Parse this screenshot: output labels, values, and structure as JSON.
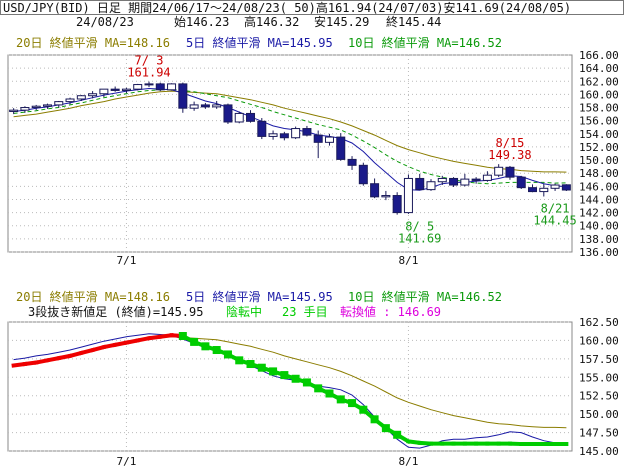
{
  "header": {
    "line1": "USD/JPY(BID) 日足 期間24/06/17～24/08/23( 50)高161.94(24/07/03)安141.69(24/08/05)",
    "date": "24/08/23",
    "open_label": "始146.23",
    "high_label": "高146.32",
    "low_label": "安145.29",
    "close_label": "終145.44"
  },
  "top_legend": {
    "ma20": "20日 終値平滑 MA=148.16",
    "ma5": "5日 終値平滑 MA=145.95",
    "ma10": "10日 終値平滑 MA=146.52"
  },
  "bottom_legend": {
    "ma20": "20日 終値平滑 MA=148.16",
    "ma5": "5日 終値平滑 MA=145.95",
    "ma10": "10日 終値平滑 MA=146.52",
    "three_line_break": "3段抜き新値足 (終値)=145.95",
    "status": "陰転中",
    "count": "23 手目",
    "reversal": "転換値 : 146.69"
  },
  "colors": {
    "ma20": "#8b7d00",
    "ma5": "#1a1aa6",
    "ma10": "#0a9a0a",
    "candle_down": "#1a1a8a",
    "up_label": "#cc0000",
    "down_label": "#1a9a1a",
    "brick_up": "#ee0000",
    "brick_down": "#00cc00",
    "reversal": "#dd00dd"
  },
  "chart_data": [
    {
      "type": "candlestick",
      "title": "USD/JPY(BID) 日足",
      "x_tick_labels": [
        "7/1",
        "8/1"
      ],
      "ylim": [
        136,
        166
      ],
      "y_tick_labels": [
        "166.00",
        "164.00",
        "162.00",
        "160.00",
        "158.00",
        "156.00",
        "154.00",
        "152.00",
        "150.00",
        "148.00",
        "146.00",
        "144.00",
        "142.00",
        "140.00",
        "138.00",
        "136.00"
      ],
      "annotations": [
        {
          "label_date": "7/ 3",
          "label_value": "161.94",
          "date_index": 12,
          "value": 161.94,
          "kind": "high"
        },
        {
          "label_date": "8/ 5",
          "label_value": "141.69",
          "date_index": 36,
          "value": 141.69,
          "kind": "low"
        },
        {
          "label_date": "8/15",
          "label_value": "149.38",
          "date_index": 44,
          "value": 149.38,
          "kind": "high"
        },
        {
          "label_date": "8/21",
          "label_value": "144.45",
          "date_index": 48,
          "value": 144.45,
          "kind": "low"
        }
      ],
      "ohlc": [
        [
          157.4,
          157.9,
          157.0,
          157.6
        ],
        [
          157.6,
          158.2,
          157.2,
          158.0
        ],
        [
          158.0,
          158.4,
          157.6,
          158.2
        ],
        [
          158.2,
          158.6,
          157.8,
          158.4
        ],
        [
          158.4,
          159.0,
          158.0,
          158.9
        ],
        [
          158.9,
          159.5,
          158.5,
          159.3
        ],
        [
          159.3,
          159.9,
          159.0,
          159.8
        ],
        [
          159.8,
          160.5,
          159.4,
          160.1
        ],
        [
          160.1,
          160.8,
          159.6,
          160.8
        ],
        [
          160.8,
          161.2,
          160.4,
          160.6
        ],
        [
          160.6,
          161.0,
          160.2,
          160.8
        ],
        [
          160.8,
          161.6,
          160.6,
          161.5
        ],
        [
          161.5,
          161.94,
          161.1,
          161.6
        ],
        [
          161.6,
          161.8,
          160.5,
          160.7
        ],
        [
          160.7,
          161.7,
          160.6,
          161.6
        ],
        [
          161.6,
          161.8,
          157.2,
          157.9
        ],
        [
          157.9,
          158.9,
          157.5,
          158.4
        ],
        [
          158.4,
          158.7,
          157.8,
          158.1
        ],
        [
          158.1,
          159.0,
          157.8,
          158.4
        ],
        [
          158.4,
          158.6,
          155.5,
          155.8
        ],
        [
          155.8,
          157.4,
          155.6,
          157.1
        ],
        [
          157.1,
          157.6,
          155.7,
          155.9
        ],
        [
          155.9,
          156.4,
          153.2,
          153.6
        ],
        [
          153.6,
          154.5,
          153.1,
          154.0
        ],
        [
          154.0,
          154.3,
          153.0,
          153.4
        ],
        [
          153.4,
          155.1,
          153.2,
          154.8
        ],
        [
          154.8,
          155.2,
          153.6,
          153.8
        ],
        [
          153.8,
          154.5,
          150.3,
          152.7
        ],
        [
          152.7,
          154.0,
          152.2,
          153.5
        ],
        [
          153.5,
          154.1,
          149.9,
          150.1
        ],
        [
          150.1,
          150.6,
          148.5,
          149.2
        ],
        [
          149.2,
          149.6,
          146.1,
          146.4
        ],
        [
          146.4,
          147.2,
          144.2,
          144.4
        ],
        [
          144.4,
          145.3,
          143.9,
          144.6
        ],
        [
          144.6,
          145.1,
          141.69,
          142.0
        ],
        [
          142.0,
          147.8,
          141.8,
          147.2
        ],
        [
          147.2,
          147.9,
          145.4,
          145.5
        ],
        [
          145.5,
          147.1,
          145.3,
          146.7
        ],
        [
          146.7,
          147.6,
          146.2,
          147.2
        ],
        [
          147.2,
          147.4,
          145.9,
          146.2
        ],
        [
          146.2,
          147.9,
          146.0,
          147.1
        ],
        [
          147.1,
          147.4,
          146.4,
          146.9
        ],
        [
          146.9,
          148.3,
          146.7,
          147.7
        ],
        [
          147.7,
          149.38,
          147.4,
          148.9
        ],
        [
          148.9,
          149.1,
          147.0,
          147.4
        ],
        [
          147.4,
          147.6,
          145.6,
          145.8
        ],
        [
          145.8,
          146.3,
          145.1,
          145.2
        ],
        [
          145.2,
          146.4,
          144.45,
          145.7
        ],
        [
          145.7,
          146.4,
          145.3,
          146.2
        ],
        [
          146.23,
          146.32,
          145.29,
          145.44
        ]
      ],
      "series": [
        {
          "name": "20日 終値平滑",
          "values": [
            156.6,
            156.8,
            157.0,
            157.3,
            157.6,
            157.9,
            158.3,
            158.6,
            158.9,
            159.3,
            159.6,
            159.9,
            160.2,
            160.4,
            160.5,
            160.4,
            160.3,
            160.2,
            160.1,
            159.8,
            159.5,
            159.2,
            158.8,
            158.4,
            157.9,
            157.5,
            157.1,
            156.7,
            156.3,
            155.8,
            155.2,
            154.5,
            153.8,
            153.0,
            152.2,
            151.6,
            151.1,
            150.6,
            150.2,
            149.8,
            149.5,
            149.2,
            148.9,
            148.7,
            148.6,
            148.4,
            148.3,
            148.2,
            148.2,
            148.16
          ]
        },
        {
          "name": "5日 終値平滑",
          "values": [
            157.4,
            157.6,
            157.9,
            158.1,
            158.4,
            158.7,
            159.1,
            159.5,
            159.9,
            160.2,
            160.5,
            160.7,
            160.9,
            160.8,
            160.7,
            160.2,
            159.6,
            159.0,
            158.6,
            158.0,
            157.3,
            156.6,
            155.9,
            155.2,
            154.8,
            154.6,
            154.3,
            153.8,
            153.6,
            153.3,
            152.6,
            151.3,
            149.6,
            148.1,
            146.6,
            145.5,
            145.4,
            145.8,
            146.4,
            146.6,
            146.6,
            146.8,
            146.9,
            147.2,
            147.6,
            147.5,
            146.9,
            146.4,
            146.1,
            145.95
          ]
        },
        {
          "name": "10日 終値平滑",
          "values": [
            157.1,
            157.3,
            157.5,
            157.8,
            158.0,
            158.4,
            158.7,
            159.1,
            159.5,
            159.8,
            160.1,
            160.4,
            160.6,
            160.7,
            160.8,
            160.6,
            160.4,
            160.1,
            159.8,
            159.5,
            159.0,
            158.5,
            158.0,
            157.4,
            156.9,
            156.4,
            155.9,
            155.4,
            155.0,
            154.6,
            153.8,
            152.9,
            151.9,
            150.8,
            149.8,
            149.0,
            148.3,
            147.8,
            147.4,
            147.0,
            146.7,
            146.5,
            146.4,
            146.5,
            146.6,
            146.6,
            146.6,
            146.6,
            146.5,
            146.52
          ]
        }
      ]
    },
    {
      "type": "line",
      "title": "3段抜き新値足 (終値)=145.95",
      "x_tick_labels": [
        "7/1",
        "8/1"
      ],
      "ylim": [
        145,
        162.5
      ],
      "y_tick_labels": [
        "162.50",
        "160.00",
        "157.50",
        "155.00",
        "152.50",
        "150.00",
        "147.50",
        "145.00"
      ],
      "three_line_break_levels": [
        156.6,
        156.8,
        157.0,
        157.3,
        157.6,
        157.9,
        158.3,
        158.7,
        159.1,
        159.4,
        159.7,
        160.0,
        160.3,
        160.5,
        160.7,
        160.6,
        159.8,
        159.2,
        158.7,
        158.1,
        157.3,
        156.8,
        156.3,
        155.8,
        155.3,
        154.8,
        154.3,
        153.5,
        152.8,
        152.0,
        151.5,
        150.6,
        149.3,
        148.1,
        147.2,
        146.3,
        146.1,
        146.0,
        146.0,
        146.0,
        146.0,
        146.0,
        146.0,
        146.0,
        146.0,
        145.95,
        145.95,
        145.95,
        145.95,
        145.95
      ],
      "direction": [
        "up",
        "up",
        "up",
        "up",
        "up",
        "up",
        "up",
        "up",
        "up",
        "up",
        "up",
        "up",
        "up",
        "up",
        "up",
        "down",
        "down",
        "down",
        "down",
        "down",
        "down",
        "down",
        "down",
        "down",
        "down",
        "down",
        "down",
        "down",
        "down",
        "down",
        "down",
        "down",
        "down",
        "down",
        "down",
        "down",
        "down",
        "down",
        "down",
        "down",
        "down",
        "down",
        "down",
        "down",
        "down",
        "down",
        "down",
        "down",
        "down",
        "down"
      ]
    }
  ]
}
